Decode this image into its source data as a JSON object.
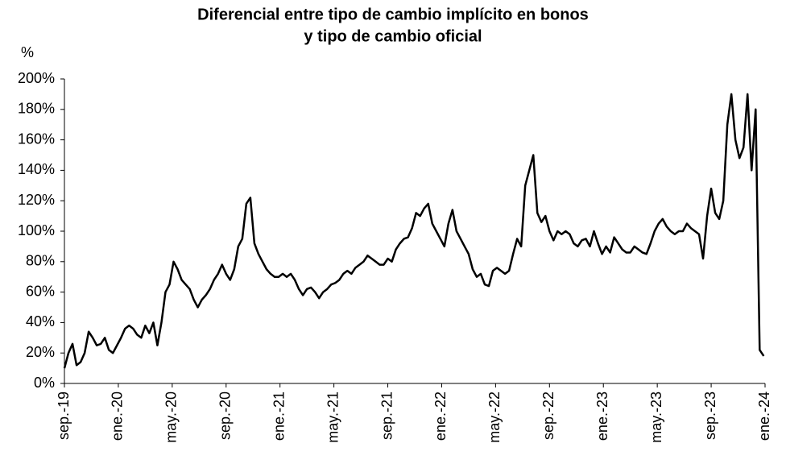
{
  "chart_data": {
    "type": "line",
    "title": [
      "Diferencial entre tipo de cambio implícito en bonos",
      "y tipo de cambio oficial"
    ],
    "y_label": "%",
    "xlim": [
      0,
      52
    ],
    "xticks": [
      {
        "value": 0,
        "label": "sep.-19"
      },
      {
        "value": 4,
        "label": "ene.-20"
      },
      {
        "value": 8,
        "label": "may.-20"
      },
      {
        "value": 12,
        "label": "sep.-20"
      },
      {
        "value": 16,
        "label": "ene.-21"
      },
      {
        "value": 20,
        "label": "may.-21"
      },
      {
        "value": 24,
        "label": "sep.-21"
      },
      {
        "value": 28,
        "label": "ene.-22"
      },
      {
        "value": 32,
        "label": "may.-22"
      },
      {
        "value": 36,
        "label": "sep.-22"
      },
      {
        "value": 40,
        "label": "ene.-23"
      },
      {
        "value": 44,
        "label": "may.-23"
      },
      {
        "value": 48,
        "label": "sep.-23"
      },
      {
        "value": 52,
        "label": "ene.-24"
      }
    ],
    "ylim": [
      0,
      200
    ],
    "yticks": [
      {
        "value": 0,
        "label": "0%"
      },
      {
        "value": 20,
        "label": "20%"
      },
      {
        "value": 40,
        "label": "40%"
      },
      {
        "value": 60,
        "label": "60%"
      },
      {
        "value": 80,
        "label": "80%"
      },
      {
        "value": 100,
        "label": "100%"
      },
      {
        "value": 120,
        "label": "120%"
      },
      {
        "value": 140,
        "label": "140%"
      },
      {
        "value": 160,
        "label": "160%"
      },
      {
        "value": 180,
        "label": "180%"
      },
      {
        "value": 200,
        "label": "200%"
      }
    ],
    "grid": false,
    "x": [
      0,
      0.3,
      0.6,
      0.9,
      1.2,
      1.5,
      1.8,
      2.1,
      2.4,
      2.7,
      3,
      3.3,
      3.6,
      3.9,
      4.2,
      4.5,
      4.8,
      5.1,
      5.4,
      5.7,
      6,
      6.3,
      6.6,
      6.9,
      7.2,
      7.5,
      7.8,
      8.1,
      8.4,
      8.7,
      9,
      9.3,
      9.6,
      9.9,
      10.2,
      10.5,
      10.8,
      11.1,
      11.4,
      11.7,
      12,
      12.3,
      12.6,
      12.9,
      13.2,
      13.5,
      13.8,
      14.1,
      14.4,
      14.7,
      15,
      15.3,
      15.6,
      15.9,
      16.2,
      16.5,
      16.8,
      17.1,
      17.4,
      17.7,
      18,
      18.3,
      18.6,
      18.9,
      19.2,
      19.5,
      19.8,
      20.1,
      20.4,
      20.7,
      21,
      21.3,
      21.6,
      21.9,
      22.2,
      22.5,
      22.8,
      23.1,
      23.4,
      23.7,
      24,
      24.3,
      24.6,
      24.9,
      25.2,
      25.5,
      25.8,
      26.1,
      26.4,
      26.7,
      27,
      27.3,
      27.6,
      27.9,
      28.2,
      28.5,
      28.8,
      29.1,
      29.4,
      29.7,
      30,
      30.3,
      30.6,
      30.9,
      31.2,
      31.5,
      31.8,
      32.1,
      32.4,
      32.7,
      33,
      33.3,
      33.6,
      33.9,
      34.2,
      34.5,
      34.8,
      35.1,
      35.4,
      35.7,
      36,
      36.3,
      36.6,
      36.9,
      37.2,
      37.5,
      37.8,
      38.1,
      38.4,
      38.7,
      39,
      39.3,
      39.6,
      39.9,
      40.2,
      40.5,
      40.8,
      41.1,
      41.4,
      41.7,
      42,
      42.3,
      42.6,
      42.9,
      43.2,
      43.5,
      43.8,
      44.1,
      44.4,
      44.7,
      45,
      45.3,
      45.6,
      45.9,
      46.2,
      46.5,
      46.8,
      47.1,
      47.4,
      47.7,
      48,
      48.3,
      48.6,
      48.9,
      49.2,
      49.5,
      49.8,
      50.1,
      50.4,
      50.7,
      51,
      51.3,
      51.6,
      51.9
    ],
    "series": [
      {
        "color": "#000000",
        "values": [
          10,
          20,
          26,
          12,
          14,
          20,
          34,
          30,
          25,
          26,
          30,
          22,
          20,
          25,
          30,
          36,
          38,
          36,
          32,
          30,
          38,
          33,
          40,
          25,
          40,
          60,
          65,
          80,
          75,
          68,
          65,
          62,
          55,
          50,
          55,
          58,
          62,
          68,
          72,
          78,
          72,
          68,
          75,
          90,
          95,
          118,
          122,
          92,
          85,
          80,
          75,
          72,
          70,
          70,
          72,
          70,
          72,
          68,
          62,
          58,
          62,
          63,
          60,
          56,
          60,
          62,
          65,
          66,
          68,
          72,
          74,
          72,
          76,
          78,
          80,
          84,
          82,
          80,
          78,
          78,
          82,
          80,
          88,
          92,
          95,
          96,
          102,
          112,
          110,
          115,
          118,
          105,
          100,
          95,
          90,
          105,
          114,
          100,
          95,
          90,
          85,
          75,
          70,
          72,
          65,
          64,
          74,
          76,
          74,
          72,
          74,
          85,
          95,
          90,
          130,
          140,
          150,
          112,
          106,
          110,
          100,
          94,
          100,
          98,
          100,
          98,
          92,
          90,
          94,
          95,
          90,
          100,
          92,
          85,
          90,
          86,
          96,
          92,
          88,
          86,
          86,
          90,
          88,
          86,
          85,
          92,
          100,
          105,
          108,
          103,
          100,
          98,
          100,
          100,
          105,
          102,
          100,
          98,
          82,
          110,
          128,
          112,
          108,
          120,
          170,
          190,
          160,
          148,
          155,
          190,
          140,
          180,
          22,
          18
        ]
      }
    ]
  }
}
